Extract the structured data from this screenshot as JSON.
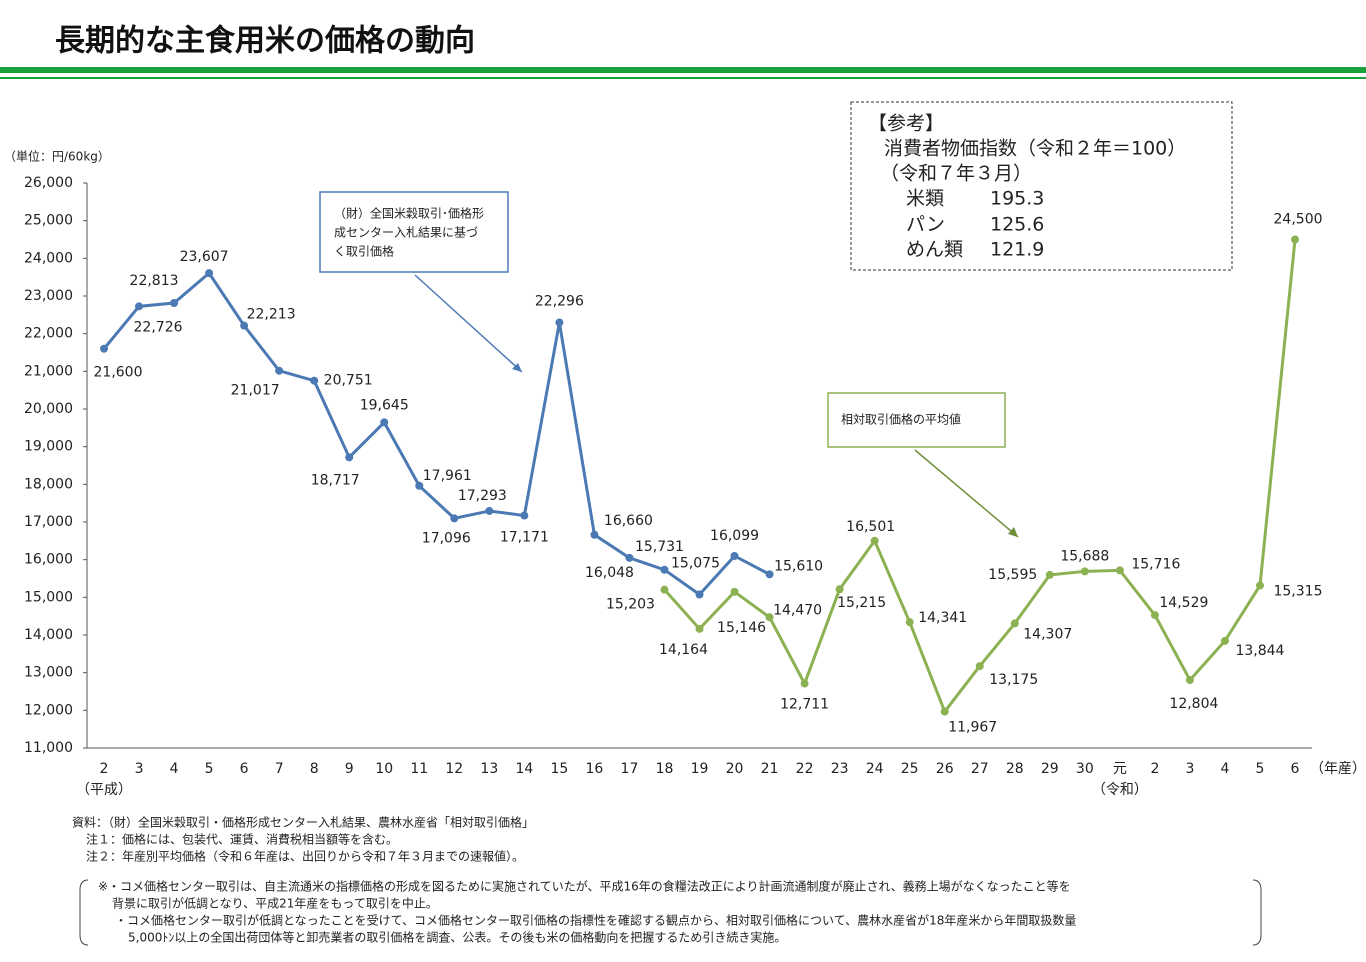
{
  "chart_data": {
    "type": "line",
    "title": "長期的な主食用米の価格の動向",
    "y_axis_label": "（単位：円/60kg）",
    "x_axis_label": "（年産）",
    "era_labels": [
      {
        "text": "（平成）",
        "index": 0
      },
      {
        "text": "（令和）",
        "index": 29
      }
    ],
    "categories": [
      "2",
      "3",
      "4",
      "5",
      "6",
      "7",
      "8",
      "9",
      "10",
      "11",
      "12",
      "13",
      "14",
      "15",
      "16",
      "17",
      "18",
      "19",
      "20",
      "21",
      "22",
      "23",
      "24",
      "25",
      "26",
      "27",
      "28",
      "29",
      "30",
      "元",
      "2",
      "3",
      "4",
      "5",
      "6"
    ],
    "ylim": [
      11000,
      26000
    ],
    "yticks": [
      {
        "value": 11000,
        "label": "11,000"
      },
      {
        "value": 12000,
        "label": "12,000"
      },
      {
        "value": 13000,
        "label": "13,000"
      },
      {
        "value": 14000,
        "label": "14,000"
      },
      {
        "value": 15000,
        "label": "15,000"
      },
      {
        "value": 16000,
        "label": "16,000"
      },
      {
        "value": 17000,
        "label": "17,000"
      },
      {
        "value": 18000,
        "label": "18,000"
      },
      {
        "value": 19000,
        "label": "19,000"
      },
      {
        "value": 20000,
        "label": "20,000"
      },
      {
        "value": 21000,
        "label": "21,000"
      },
      {
        "value": 22000,
        "label": "22,000"
      },
      {
        "value": 23000,
        "label": "23,000"
      },
      {
        "value": 24000,
        "label": "24,000"
      },
      {
        "value": 25000,
        "label": "25,000"
      },
      {
        "value": 26000,
        "label": "26,000"
      }
    ],
    "series": [
      {
        "name": "（財）全国米穀取引・価格形成センター入札結果に基づく取引価格",
        "name_lines": [
          "（財）全国米穀取引･価格形",
          "成センター入札結果に基づ",
          "く取引価格"
        ],
        "color": "#4b79b3",
        "values": [
          21600,
          22726,
          22813,
          23607,
          22213,
          21017,
          20751,
          18717,
          19645,
          17961,
          17096,
          17293,
          17171,
          22296,
          16660,
          16048,
          15731,
          15075,
          16099,
          15610,
          null,
          null,
          null,
          null,
          null,
          null,
          null,
          null,
          null,
          null,
          null,
          null,
          null,
          null,
          null
        ],
        "value_labels": [
          "21,600",
          "22,726",
          "22,813",
          "23,607",
          "22,213",
          "21,017",
          "20,751",
          "18,717",
          "19,645",
          "17,961",
          "17,096",
          "17,293",
          "17,171",
          "22,296",
          "16,660",
          "16,048",
          "15,731",
          "15,075",
          "16,099",
          "15,610",
          null,
          null,
          null,
          null,
          null,
          null,
          null,
          null,
          null,
          null,
          null,
          null,
          null,
          null,
          null
        ]
      },
      {
        "name": "相対取引価格の平均値",
        "color": "#8cb152",
        "values": [
          null,
          null,
          null,
          null,
          null,
          null,
          null,
          null,
          null,
          null,
          null,
          null,
          null,
          null,
          null,
          null,
          15203,
          14164,
          15146,
          14470,
          12711,
          15215,
          16501,
          14341,
          11967,
          13175,
          14307,
          15595,
          15688,
          15716,
          14529,
          12804,
          13844,
          15315,
          24500
        ],
        "value_labels": [
          null,
          null,
          null,
          null,
          null,
          null,
          null,
          null,
          null,
          null,
          null,
          null,
          null,
          null,
          null,
          null,
          "15,203",
          "14,164",
          "15,146",
          "14,470",
          "12,711",
          "15,215",
          "16,501",
          "14,341",
          "11,967",
          "13,175",
          "14,307",
          "15,595",
          "15,688",
          "15,716",
          "14,529",
          "12,804",
          "13,844",
          "15,315",
          "24,500"
        ]
      }
    ],
    "reference": {
      "heading": "【参考】",
      "line1": "消費者物価指数（令和２年＝100）",
      "line2": "（令和７年３月）",
      "items": [
        {
          "name": "米類",
          "value": 195.3
        },
        {
          "name": "パン",
          "value": 125.6
        },
        {
          "name": "めん類",
          "value": 121.9
        }
      ]
    },
    "notes": [
      "資料：（財）全国米穀取引・価格形成センター入札結果、農林水産省「相対取引価格」",
      "注１：価格には、包装代、運賃、消費税相当額等を含む。",
      "注２：年産別平均価格（令和６年産は、出回りから令和７年３月までの速報値）。"
    ],
    "remarks": [
      "※・コメ価格センター取引は、自主流通米の指標価格の形成を図るために実施されていたが、平成16年の食糧法改正により計画流通制度が廃止され、義務上場がなくなったこと等を",
      "背景に取引が低調となり、平成21年産をもって取引を中止。",
      "・コメ価格センター取引が低調となったことを受けて、コメ価格センター取引価格の指標性を確認する観点から、相対取引価格について、農林水産省が18年産米から年間取扱数量",
      "5,000ﾄﾝ以上の全国出荷団体等と卸売業者の取引価格を調査、公表。その後も米の価格動向を把握するため引き続き実施。"
    ]
  }
}
